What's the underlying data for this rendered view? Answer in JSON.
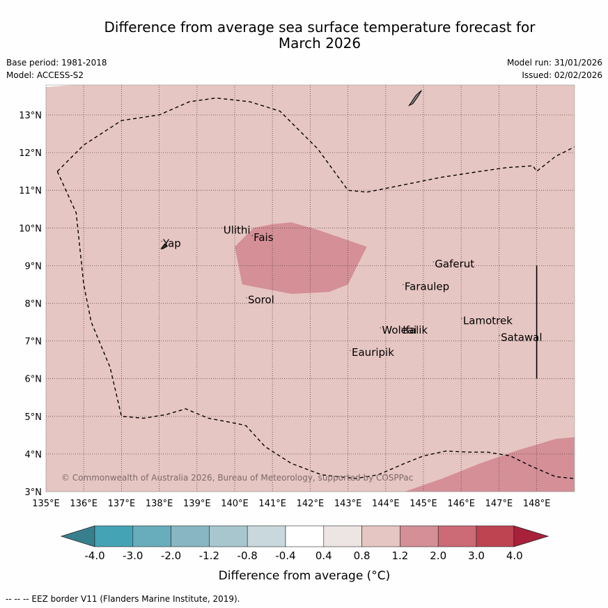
{
  "title_line1": "Difference from average sea surface temperature forecast for",
  "title_line2": "March 2026",
  "base_period": "Base period: 1981-2018",
  "model": "Model: ACCESS-S2",
  "model_run": "Model run: 31/01/2026",
  "issued": "Issued: 02/02/2026",
  "copyright": "© Commonwealth of Australia 2026, Bureau of Meteorology, supported by COSPPac",
  "footer_legend": "--  --  -- EEZ border V11 (Flanders Marine Institute, 2019).",
  "colors": {
    "anomaly_0_8_to_1_2": "#e6c6c2",
    "anomaly_1_2_to_2_0": "#d48f97",
    "grid": "#5a4545",
    "island": "#808080"
  },
  "map": {
    "lon_min": 135,
    "lon_max": 149,
    "lat_min": 3,
    "lat_max": 13.8,
    "lon_ticks": [
      "135°E",
      "136°E",
      "137°E",
      "138°E",
      "139°E",
      "140°E",
      "141°E",
      "142°E",
      "143°E",
      "144°E",
      "145°E",
      "146°E",
      "147°E",
      "148°E"
    ],
    "lat_ticks": [
      "3°N",
      "4°N",
      "5°N",
      "6°N",
      "7°N",
      "8°N",
      "9°N",
      "10°N",
      "11°N",
      "12°N",
      "13°N"
    ],
    "places": [
      {
        "name": "Ulithi",
        "lon": 139.7,
        "lat": 9.85
      },
      {
        "name": "Fais",
        "lon": 140.5,
        "lat": 9.65
      },
      {
        "name": "Yap",
        "lon": 138.1,
        "lat": 9.5
      },
      {
        "name": "Sorol",
        "lon": 140.35,
        "lat": 8.0
      },
      {
        "name": "Gaferut",
        "lon": 145.3,
        "lat": 8.95
      },
      {
        "name": "Faraulep",
        "lon": 144.5,
        "lat": 8.35
      },
      {
        "name": "Woleai",
        "lon": 143.9,
        "lat": 7.2
      },
      {
        "name": "Ifalik",
        "lon": 144.45,
        "lat": 7.2
      },
      {
        "name": "Lamotrek",
        "lon": 146.05,
        "lat": 7.45
      },
      {
        "name": "Satawal",
        "lon": 147.05,
        "lat": 7.0
      },
      {
        "name": "Eauripik",
        "lon": 143.1,
        "lat": 6.6
      }
    ],
    "eez_border": [
      [
        135.3,
        11.5
      ],
      [
        135.8,
        10.4
      ],
      [
        136.0,
        8.5
      ],
      [
        136.2,
        7.5
      ],
      [
        136.7,
        6.3
      ],
      [
        137.0,
        5.0
      ],
      [
        137.6,
        4.95
      ],
      [
        138.2,
        5.05
      ],
      [
        138.7,
        5.2
      ],
      [
        139.3,
        4.95
      ],
      [
        140.1,
        4.8
      ],
      [
        140.3,
        4.75
      ],
      [
        140.8,
        4.2
      ],
      [
        141.5,
        3.75
      ],
      [
        142.3,
        3.45
      ],
      [
        143.2,
        3.35
      ],
      [
        143.8,
        3.45
      ],
      [
        144.5,
        3.75
      ],
      [
        145.0,
        3.95
      ],
      [
        145.6,
        4.08
      ],
      [
        146.2,
        4.05
      ],
      [
        146.7,
        4.05
      ],
      [
        147.3,
        3.95
      ],
      [
        147.8,
        3.7
      ],
      [
        148.5,
        3.4
      ],
      [
        149.0,
        3.35
      ]
    ],
    "eez_border_north": [
      [
        135.3,
        11.5
      ],
      [
        136.0,
        12.2
      ],
      [
        137.0,
        12.85
      ],
      [
        138.0,
        13.0
      ],
      [
        138.8,
        13.35
      ],
      [
        139.5,
        13.45
      ],
      [
        140.4,
        13.35
      ],
      [
        141.2,
        13.1
      ],
      [
        142.2,
        12.1
      ],
      [
        143.0,
        11.0
      ],
      [
        143.5,
        10.95
      ],
      [
        144.5,
        11.15
      ],
      [
        145.5,
        11.35
      ],
      [
        146.5,
        11.5
      ],
      [
        147.2,
        11.6
      ],
      [
        147.9,
        11.65
      ],
      [
        148.0,
        11.5
      ],
      [
        148.5,
        11.9
      ],
      [
        149.0,
        12.15
      ]
    ],
    "eez_vertical": [
      [
        148.0,
        9.0
      ],
      [
        148.0,
        6.0
      ]
    ],
    "warm_patch_center": [
      [
        140.5,
        10.0
      ],
      [
        141.0,
        10.1
      ],
      [
        141.5,
        10.15
      ],
      [
        142.2,
        9.95
      ],
      [
        143.5,
        9.5
      ],
      [
        143.0,
        8.5
      ],
      [
        142.5,
        8.3
      ],
      [
        141.5,
        8.25
      ],
      [
        140.2,
        8.5
      ],
      [
        140.0,
        9.5
      ]
    ],
    "warm_patch_se": [
      [
        144.5,
        3.0
      ],
      [
        145.5,
        3.35
      ],
      [
        146.5,
        3.75
      ],
      [
        147.5,
        4.1
      ],
      [
        148.5,
        4.4
      ],
      [
        149.0,
        4.45
      ],
      [
        149.0,
        3.0
      ]
    ],
    "island_guam": [
      [
        144.62,
        13.25
      ],
      [
        144.8,
        13.52
      ],
      [
        144.95,
        13.65
      ],
      [
        144.85,
        13.48
      ],
      [
        144.72,
        13.3
      ]
    ],
    "island_yap": [
      [
        138.05,
        9.45
      ],
      [
        138.15,
        9.58
      ],
      [
        138.22,
        9.52
      ],
      [
        138.1,
        9.45
      ]
    ]
  },
  "colorbar": {
    "tick_labels": [
      "-4.0",
      "-3.0",
      "-2.0",
      "-1.2",
      "-0.8",
      "-0.4",
      "0.4",
      "0.8",
      "1.2",
      "2.0",
      "3.0",
      "4.0"
    ],
    "bin_colors": [
      "#44a3b4",
      "#68adbc",
      "#88b6c3",
      "#a8c6cd",
      "#c8d8dc",
      "#ffffff",
      "#ede5e3",
      "#e6c6c2",
      "#d48f97",
      "#cc6a75",
      "#be4452"
    ],
    "under_color": "#387f8e",
    "over_color": "#a8213a",
    "label": "Difference from average (°C)"
  }
}
